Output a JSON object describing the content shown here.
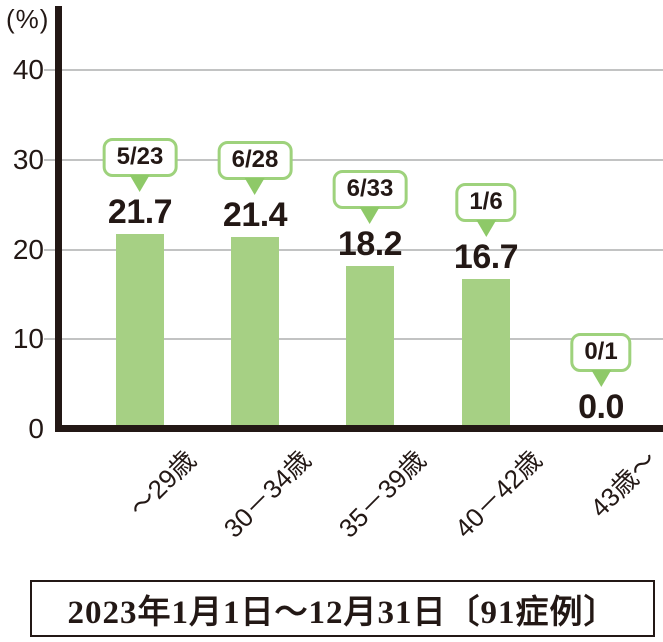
{
  "chart_data": {
    "type": "bar",
    "title": "",
    "unit_label": "(%)",
    "categories": [
      "～29歳",
      "30－34歳",
      "35－39歳",
      "40－42歳",
      "43歳～"
    ],
    "values": [
      21.7,
      21.4,
      18.2,
      16.7,
      0.0
    ],
    "value_labels": [
      "21.7",
      "21.4",
      "18.2",
      "16.7",
      "0.0"
    ],
    "callout_fractions": [
      "5/23",
      "6/28",
      "6/33",
      "1/6",
      "0/1"
    ],
    "ylabel": "(%)",
    "xlabel": "",
    "ylim": [
      0,
      45
    ],
    "yticks": [
      0,
      10,
      20,
      30,
      40
    ],
    "grid": true,
    "legend": "none",
    "colors": {
      "bar": "#a6d084",
      "callout_border": "#9ed27c",
      "callout_pointer": "#8ec968",
      "gridline": "#c2c3c3",
      "axis_and_text": "#231815"
    }
  },
  "caption": {
    "text": "2023年1月1日～12月31日〔91症例〕"
  }
}
